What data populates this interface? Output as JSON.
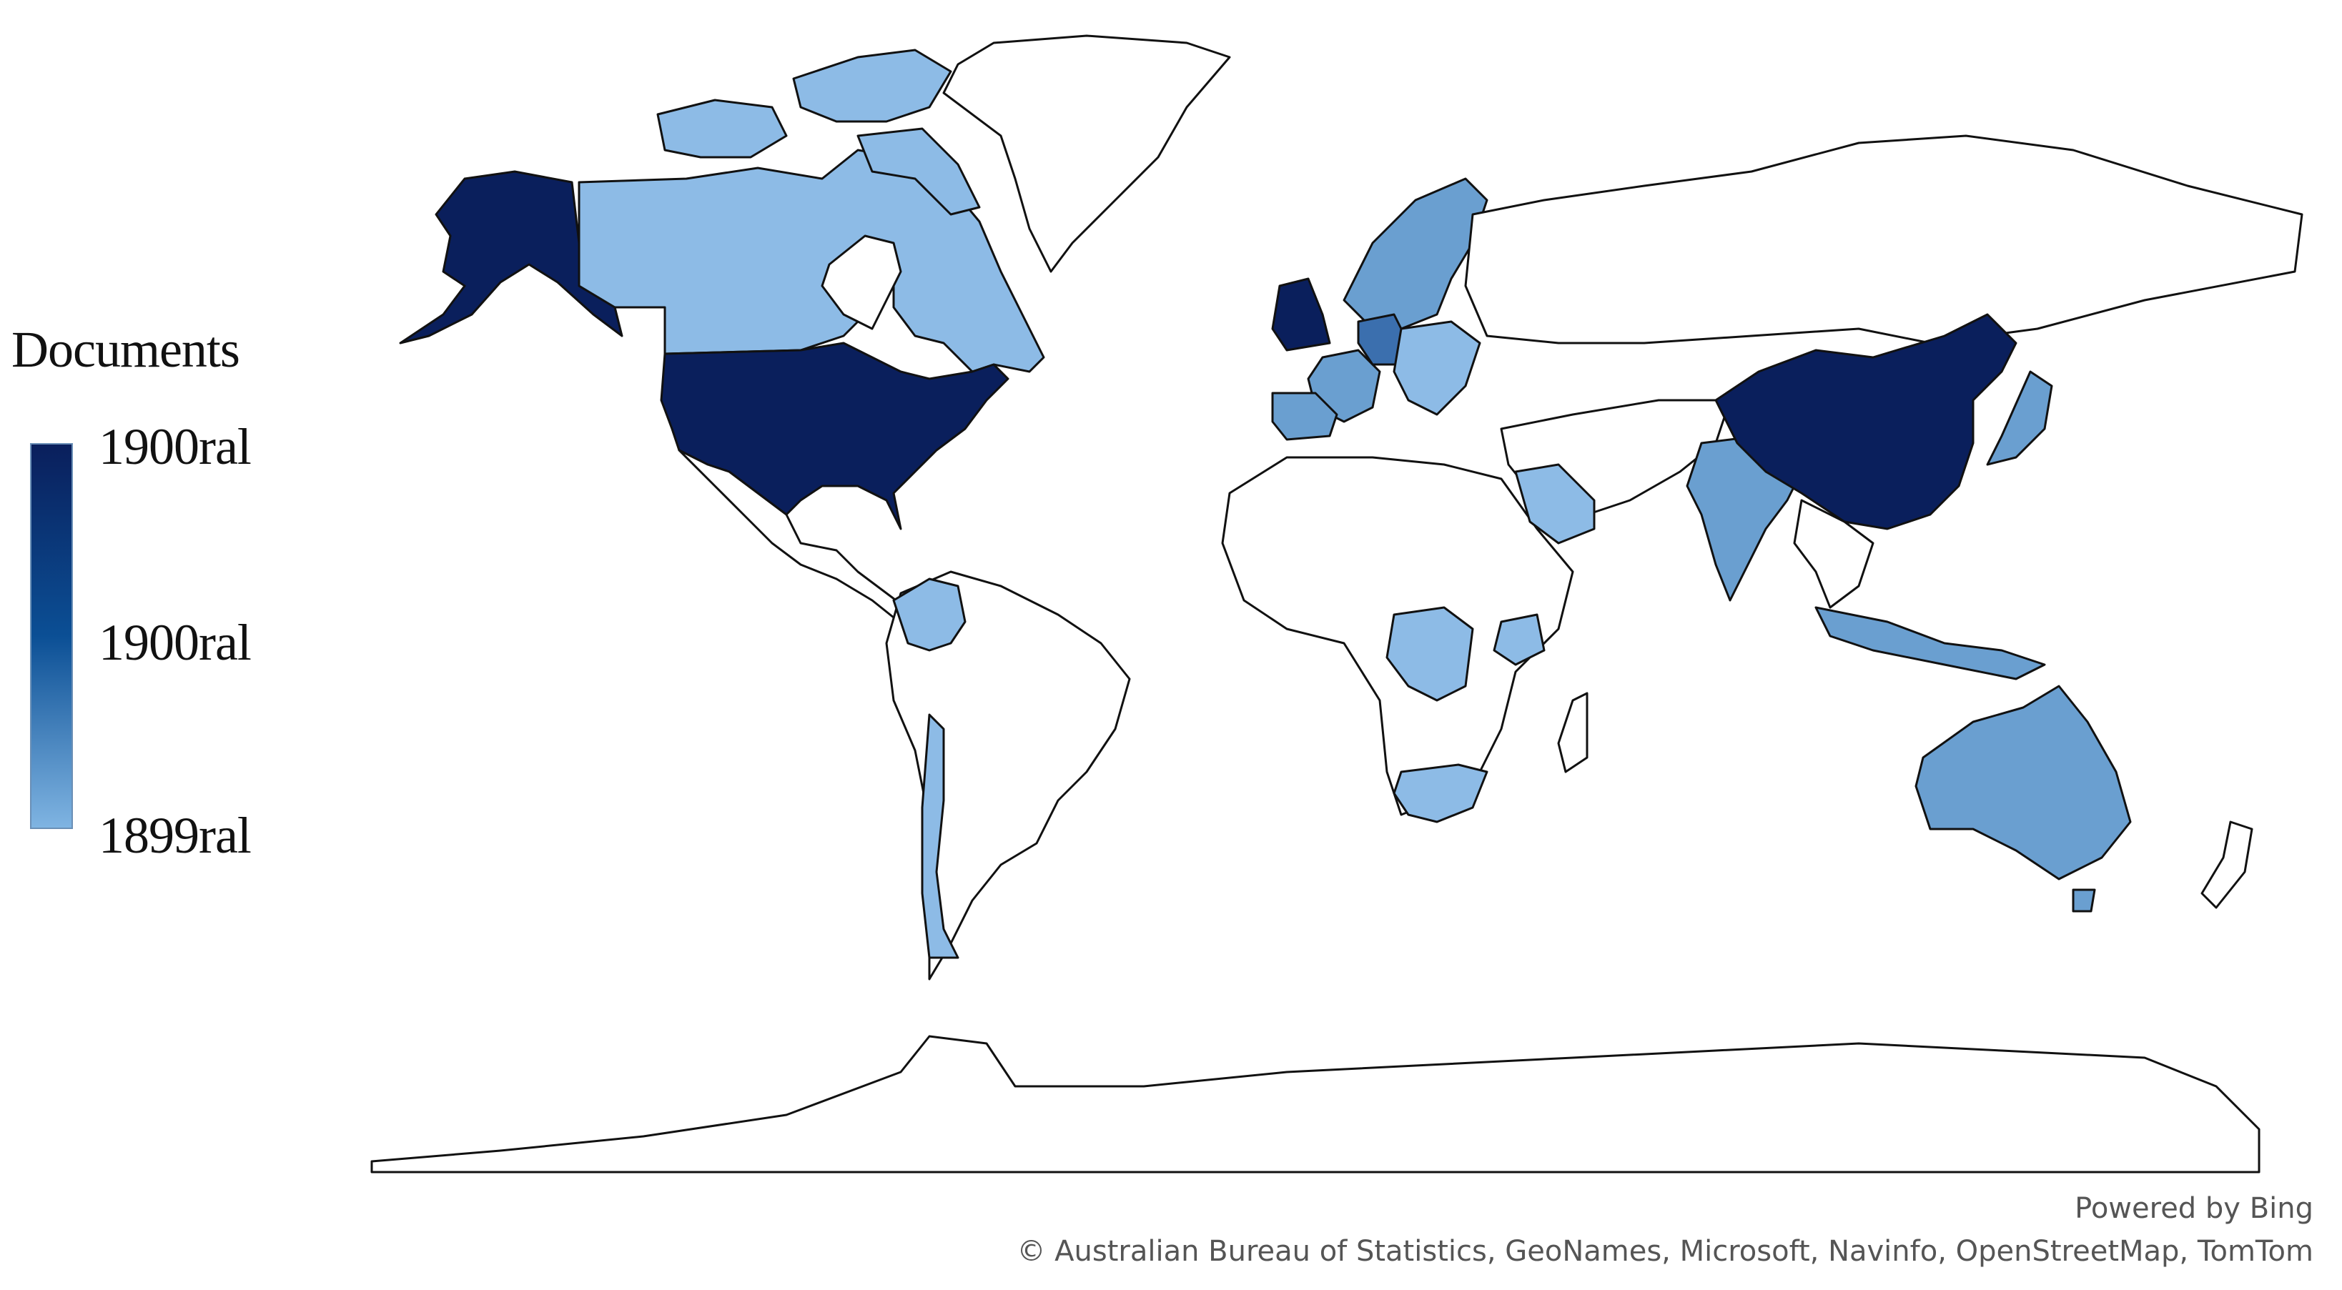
{
  "legend": {
    "title": "Documents",
    "max_label": "1900ral",
    "mid_label": "1900ral",
    "min_label": "1899ral",
    "gradient": [
      "#0a1f5c",
      "#0b4f95",
      "#7fb4e2"
    ]
  },
  "colors": {
    "very_high": "#0a1f5c",
    "high": "#3b6fae",
    "medium": "#6a9fd0",
    "low": "#8dbbe6",
    "none": "#ffffff",
    "border": "#111111"
  },
  "regions": [
    {
      "name": "alaska",
      "level": "very_high"
    },
    {
      "name": "canada",
      "level": "low"
    },
    {
      "name": "canada-arctic-islands",
      "level": "low"
    },
    {
      "name": "greenland",
      "level": "none"
    },
    {
      "name": "united-states",
      "level": "very_high"
    },
    {
      "name": "mexico",
      "level": "none"
    },
    {
      "name": "colombia",
      "level": "low"
    },
    {
      "name": "south-america",
      "level": "none"
    },
    {
      "name": "chile",
      "level": "low"
    },
    {
      "name": "united-kingdom",
      "level": "very_high"
    },
    {
      "name": "germany",
      "level": "high"
    },
    {
      "name": "spain",
      "level": "medium"
    },
    {
      "name": "france",
      "level": "medium"
    },
    {
      "name": "scandinavia",
      "level": "medium"
    },
    {
      "name": "europe-other",
      "level": "low"
    },
    {
      "name": "russia",
      "level": "none"
    },
    {
      "name": "africa",
      "level": "none"
    },
    {
      "name": "dr-congo",
      "level": "low"
    },
    {
      "name": "kenya",
      "level": "low"
    },
    {
      "name": "south-africa",
      "level": "low"
    },
    {
      "name": "saudi-arabia",
      "level": "low"
    },
    {
      "name": "india",
      "level": "medium"
    },
    {
      "name": "china",
      "level": "very_high"
    },
    {
      "name": "japan",
      "level": "medium"
    },
    {
      "name": "indonesia",
      "level": "medium"
    },
    {
      "name": "australia",
      "level": "medium"
    },
    {
      "name": "antarctica",
      "level": "none"
    }
  ],
  "attribution": {
    "powered": "Powered by Bing",
    "sources": "© Australian Bureau of Statistics, GeoNames, Microsoft, Navinfo, OpenStreetMap, TomTom"
  }
}
